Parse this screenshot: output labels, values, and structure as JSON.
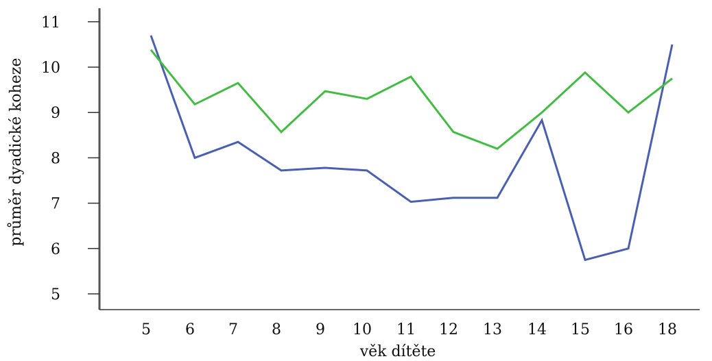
{
  "chart_data": {
    "type": "line",
    "title": "",
    "xlabel": "věk dítěte",
    "ylabel": "průměr dyadické koheze",
    "categories": [
      "5",
      "6",
      "7",
      "8",
      "9",
      "10",
      "11",
      "12",
      "13",
      "14",
      "15",
      "16",
      "18"
    ],
    "y_ticks": [
      5,
      6,
      7,
      8,
      9,
      10,
      11
    ],
    "ylim": [
      4.5,
      11.3
    ],
    "grid": false,
    "legend": "none",
    "series": [
      {
        "color": "#4a5fb0",
        "values": [
          10.7,
          8.0,
          8.35,
          7.72,
          7.78,
          7.72,
          7.03,
          7.12,
          7.12,
          8.83,
          5.75,
          6.0,
          10.5
        ]
      },
      {
        "color": "#44bb44",
        "values": [
          10.38,
          9.18,
          9.65,
          8.57,
          9.47,
          9.3,
          9.79,
          8.57,
          8.2,
          9.0,
          9.88,
          9.0,
          9.75
        ]
      }
    ]
  }
}
